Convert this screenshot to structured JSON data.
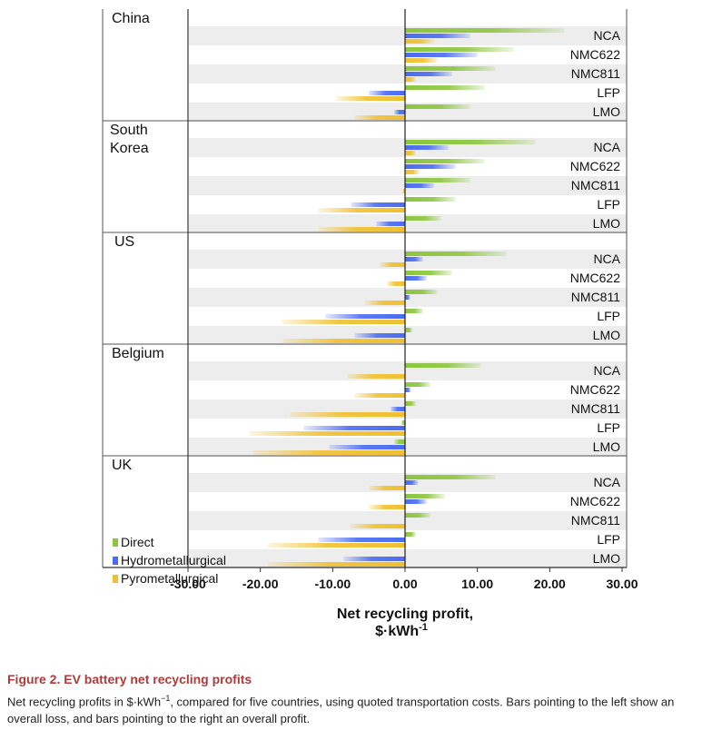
{
  "chart_data": {
    "type": "bar",
    "orientation": "horizontal",
    "xlabel_line1": "Net recycling profit,",
    "xlabel_line2": "$·kWh",
    "xlabel_exponent": "-1",
    "xlim": [
      -30,
      30
    ],
    "xticks": [
      "-30.00",
      "-20.00",
      "-10.00",
      "0.00",
      "10.00",
      "20.00",
      "30.00"
    ],
    "chemistries": [
      "NCA",
      "NMC622",
      "NMC811",
      "LFP",
      "LMO"
    ],
    "series": [
      {
        "name": "Direct",
        "color": "#8cc63f"
      },
      {
        "name": "Hydrometallurgical",
        "color": "#4a6cf0"
      },
      {
        "name": "Pyrometallurgical",
        "color": "#f0c030"
      }
    ],
    "countries": [
      {
        "name_lines": [
          "China"
        ],
        "values": {
          "NCA": [
            22,
            9,
            4
          ],
          "NMC622": [
            15,
            10,
            4.5
          ],
          "NMC811": [
            12.5,
            6.5,
            1.5
          ],
          "LFP": [
            11,
            -5,
            -9.5
          ],
          "LMO": [
            9,
            -1.5,
            -7
          ]
        }
      },
      {
        "name_lines": [
          "South",
          "Korea"
        ],
        "values": {
          "NCA": [
            18,
            6,
            1.5
          ],
          "NMC622": [
            11,
            7,
            2
          ],
          "NMC811": [
            9,
            4,
            -0.3
          ],
          "LFP": [
            7,
            -7.5,
            -12
          ],
          "LMO": [
            5,
            -4,
            -12
          ]
        }
      },
      {
        "name_lines": [
          "US"
        ],
        "values": {
          "NCA": [
            14,
            2.5,
            -3.5
          ],
          "NMC622": [
            6.5,
            3,
            -2.5
          ],
          "NMC811": [
            4.5,
            0.7,
            -5.5
          ],
          "LFP": [
            2.5,
            -11,
            -17
          ],
          "LMO": [
            1,
            -7,
            -17
          ]
        }
      },
      {
        "name_lines": [
          "Belgium"
        ],
        "values": {
          "NCA": [
            10.5,
            0,
            -8
          ],
          "NMC622": [
            3.5,
            0.8,
            -7
          ],
          "NMC811": [
            1.5,
            -2,
            -16
          ],
          "LFP": [
            -0.5,
            -14,
            -21.5
          ],
          "LMO": [
            -1.5,
            -10.5,
            -21
          ]
        }
      },
      {
        "name_lines": [
          "UK"
        ],
        "values": {
          "NCA": [
            12.5,
            1.8,
            -5
          ],
          "NMC622": [
            5.5,
            3,
            -5
          ],
          "NMC811": [
            3.5,
            0,
            -7.5
          ],
          "LFP": [
            1.5,
            -12,
            -19
          ],
          "LMO": [
            0,
            -8.5,
            -19
          ]
        }
      }
    ]
  },
  "legend": {
    "items": [
      {
        "label": "Direct",
        "color": "#8cc63f"
      },
      {
        "label": "Hydrometallurgical",
        "color": "#4a6cf0"
      },
      {
        "label": "Pyrometallurgical",
        "color": "#f0c030"
      }
    ]
  },
  "caption": {
    "title": "Figure 2.  EV battery net recycling profits",
    "text_before": "Net recycling profits in $·kWh",
    "text_sup": "−1",
    "text_after": ", compared for five countries, using quoted transportation costs. Bars pointing to the left show an overall loss, and bars pointing to the right an overall profit."
  }
}
